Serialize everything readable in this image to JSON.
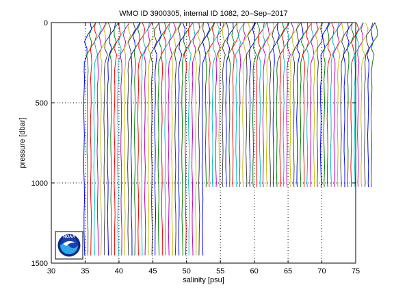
{
  "chart_data": {
    "type": "line",
    "title": "WMO ID 3900305, internal ID 1082, 20–Sep–2017",
    "xlabel": "salinity [psu]",
    "ylabel": "pressure [dbar]",
    "xlim": [
      30,
      75
    ],
    "ylim": [
      0,
      1500
    ],
    "y_reversed": true,
    "xticks": [
      30,
      35,
      40,
      45,
      50,
      55,
      60,
      65,
      70,
      75
    ],
    "yticks": [
      0,
      500,
      1000,
      1500
    ],
    "grid": true,
    "grid_style": "dotted",
    "profile_offset_psu": 0.5,
    "description": "Waterfall of stacked salinity profiles, each successive profile offset by a constant salinity step.",
    "profile_groups": [
      {
        "count": 36,
        "first_base_salinity": 34.85,
        "max_pressure": 1450
      },
      {
        "count": 50,
        "first_base_salinity": 52.85,
        "max_pressure": 1025
      }
    ],
    "profile_shape": {
      "pressure": [
        0,
        40,
        80,
        120,
        160,
        200,
        250,
        300,
        350,
        400,
        500,
        600,
        700,
        800,
        900,
        1000,
        1100,
        1200,
        1300,
        1450
      ],
      "salinity_anomaly": [
        0.9,
        0.75,
        0.55,
        0.38,
        0.25,
        0.15,
        0.08,
        0.04,
        0.02,
        0.0,
        -0.01,
        -0.02,
        -0.02,
        -0.02,
        -0.01,
        0.0,
        0.01,
        0.02,
        0.03,
        0.04
      ]
    },
    "series_colors": [
      "#0000ff",
      "#008000",
      "#ff0000",
      "#00bfbf",
      "#bf00bf",
      "#bfbf00",
      "#404040"
    ]
  },
  "logo": {
    "name": "noaa-logo",
    "text": "NOAA",
    "colors": {
      "outer": "#ffffff",
      "ring": "#0a2a8a",
      "sky": "#1a3fae",
      "sea": "#2aa8e8",
      "bird": "#ffffff"
    }
  }
}
